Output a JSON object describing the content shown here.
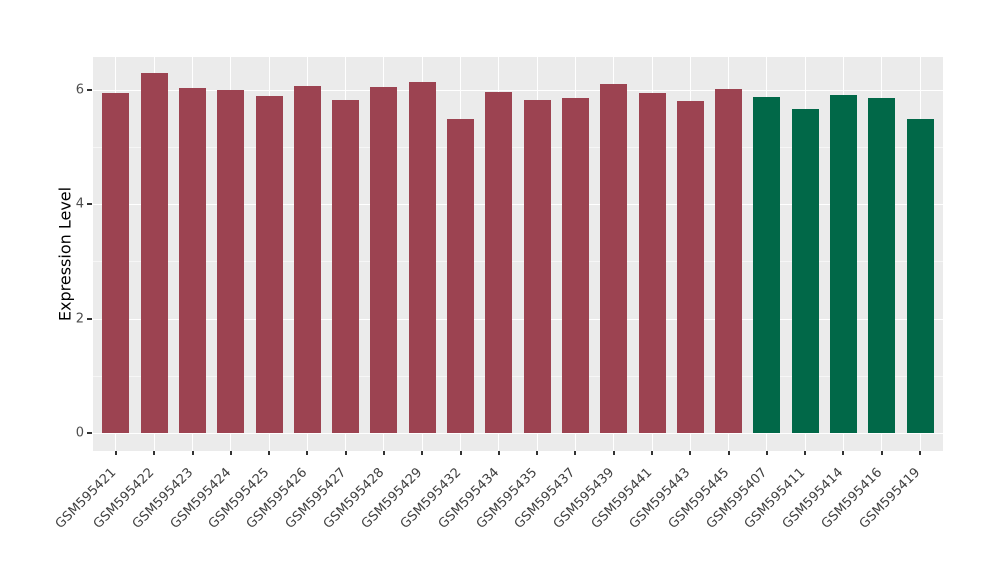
{
  "chart_data": {
    "type": "bar",
    "title": "",
    "xlabel": "",
    "ylabel": "Expression Level",
    "yticks": [
      0,
      2,
      4,
      6
    ],
    "ytick_labels": [
      "0",
      "2",
      "4",
      "6"
    ],
    "yminorticks": [
      1,
      3,
      5
    ],
    "ylim": [
      0,
      6.6
    ],
    "grid": "major-and-minor, white on gray panel",
    "legend_position": "none",
    "categories": [
      "GSM595421",
      "GSM595422",
      "GSM595423",
      "GSM595424",
      "GSM595425",
      "GSM595426",
      "GSM595427",
      "GSM595428",
      "GSM595429",
      "GSM595432",
      "GSM595434",
      "GSM595435",
      "GSM595437",
      "GSM595439",
      "GSM595441",
      "GSM595443",
      "GSM595445",
      "GSM595407",
      "GSM595411",
      "GSM595414",
      "GSM595416",
      "GSM595419"
    ],
    "values": [
      5.94,
      6.29,
      6.04,
      6.0,
      5.89,
      6.06,
      5.83,
      6.05,
      6.13,
      5.49,
      5.96,
      5.82,
      5.86,
      6.11,
      5.94,
      5.8,
      6.02,
      5.88,
      5.67,
      5.91,
      5.85,
      5.49
    ],
    "groups": [
      "maroon",
      "maroon",
      "maroon",
      "maroon",
      "maroon",
      "maroon",
      "maroon",
      "maroon",
      "maroon",
      "maroon",
      "maroon",
      "maroon",
      "maroon",
      "maroon",
      "maroon",
      "maroon",
      "maroon",
      "green",
      "green",
      "green",
      "green",
      "green"
    ],
    "group_colors": {
      "maroon": "#9C4351",
      "green": "#016848"
    },
    "colors": {
      "panel_background": "#EBEBEB",
      "grid_major": "#FFFFFF",
      "grid_minor": "#F6F6F6",
      "tick_mark": "#333333",
      "tick_text": "#4D4D4D",
      "axis_title": "#000000",
      "figure_background": "#FFFFFF"
    },
    "x_label_angle": -45
  }
}
